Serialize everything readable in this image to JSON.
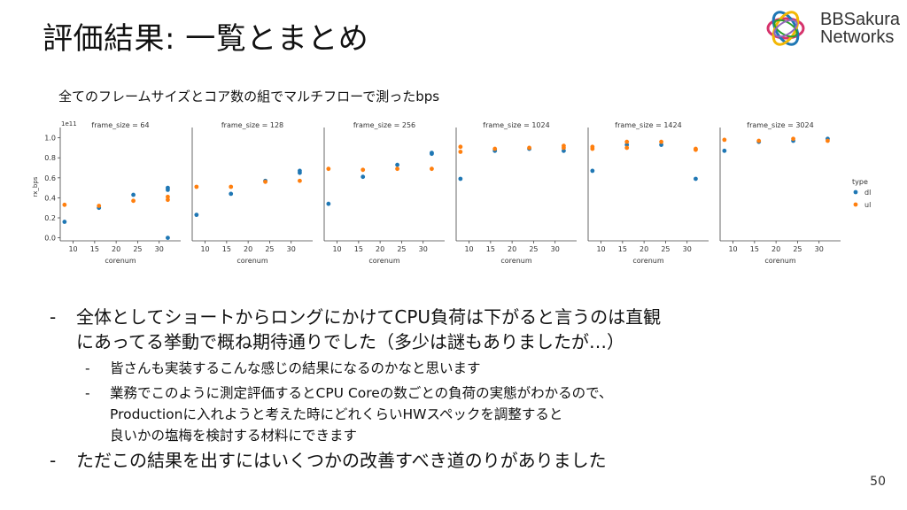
{
  "slide": {
    "title": "評価結果: 一覧とまとめ",
    "logo": {
      "line1": "BBSakura",
      "line2": "Networks"
    },
    "subtitle": "全てのフレームサイズとコア数の組でマルチフローで測ったbps",
    "page_number": "50"
  },
  "bullets": {
    "b1": {
      "line1": "全体としてショートからロングにかけてCPU負荷は下がると言うのは直観",
      "line2": "にあってる挙動で概ね期待通りでした（多少は謎もありましたが…）"
    },
    "b1_1": "皆さんも実装するこんな感じの結果になるのかなと思います",
    "b1_2": {
      "line1": "業務でこのように測定評価するとCPU Coreの数ごとの負荷の実態がわかるので、",
      "line2": "Productionに入れようと考えた時にどれくらいHWスペックを調整すると",
      "line3": "良いかの塩梅を検討する材料にできます"
    },
    "b2": "ただこの結果を出すにはいくつかの改善すべき道のりがありました",
    "dash": "-"
  },
  "chart_data": {
    "type": "scatter",
    "xlabel": "corenum",
    "ylabel": "rx_bps",
    "y_offset_text": "1e11",
    "xlim": [
      7,
      35
    ],
    "ylim": [
      -0.03,
      1.05
    ],
    "xticks": [
      10,
      15,
      20,
      25,
      30
    ],
    "yticks": [
      "0.0",
      "0.2",
      "0.4",
      "0.6",
      "0.8",
      "1.0"
    ],
    "grid": false,
    "legend": {
      "title": "type",
      "placement": "right",
      "entries": [
        {
          "name": "dl",
          "color": "#1f77b4"
        },
        {
          "name": "ul",
          "color": "#ff7f0e"
        }
      ]
    },
    "panels": [
      {
        "title": "frame_size = 64",
        "series": [
          {
            "name": "dl",
            "points": [
              [
                8,
                0.16
              ],
              [
                16,
                0.3
              ],
              [
                24,
                0.43
              ],
              [
                32,
                0.5
              ],
              [
                32,
                0.48
              ],
              [
                32,
                0.0
              ]
            ]
          },
          {
            "name": "ul",
            "points": [
              [
                8,
                0.33
              ],
              [
                16,
                0.32
              ],
              [
                24,
                0.37
              ],
              [
                32,
                0.41
              ],
              [
                32,
                0.38
              ]
            ]
          }
        ]
      },
      {
        "title": "frame_size = 128",
        "series": [
          {
            "name": "dl",
            "points": [
              [
                8,
                0.23
              ],
              [
                16,
                0.44
              ],
              [
                24,
                0.57
              ],
              [
                32,
                0.67
              ],
              [
                32,
                0.65
              ]
            ]
          },
          {
            "name": "ul",
            "points": [
              [
                8,
                0.51
              ],
              [
                16,
                0.51
              ],
              [
                24,
                0.56
              ],
              [
                32,
                0.57
              ]
            ]
          }
        ]
      },
      {
        "title": "frame_size = 256",
        "series": [
          {
            "name": "dl",
            "points": [
              [
                8,
                0.34
              ],
              [
                16,
                0.61
              ],
              [
                24,
                0.73
              ],
              [
                32,
                0.85
              ],
              [
                32,
                0.84
              ]
            ]
          },
          {
            "name": "ul",
            "points": [
              [
                8,
                0.69
              ],
              [
                16,
                0.68
              ],
              [
                24,
                0.69
              ],
              [
                32,
                0.69
              ]
            ]
          }
        ]
      },
      {
        "title": "frame_size = 1024",
        "series": [
          {
            "name": "dl",
            "points": [
              [
                8,
                0.59
              ],
              [
                16,
                0.87
              ],
              [
                24,
                0.89
              ],
              [
                32,
                0.87
              ]
            ]
          },
          {
            "name": "ul",
            "points": [
              [
                8,
                0.91
              ],
              [
                8,
                0.86
              ],
              [
                16,
                0.89
              ],
              [
                24,
                0.9
              ],
              [
                32,
                0.92
              ],
              [
                32,
                0.9
              ]
            ]
          }
        ]
      },
      {
        "title": "frame_size = 1424",
        "series": [
          {
            "name": "dl",
            "points": [
              [
                8,
                0.67
              ],
              [
                16,
                0.93
              ],
              [
                24,
                0.93
              ],
              [
                32,
                0.59
              ]
            ]
          },
          {
            "name": "ul",
            "points": [
              [
                8,
                0.91
              ],
              [
                8,
                0.89
              ],
              [
                16,
                0.96
              ],
              [
                16,
                0.9
              ],
              [
                24,
                0.96
              ],
              [
                32,
                0.89
              ],
              [
                32,
                0.88
              ]
            ]
          }
        ]
      },
      {
        "title": "frame_size = 3024",
        "series": [
          {
            "name": "dl",
            "points": [
              [
                8,
                0.87
              ],
              [
                16,
                0.96
              ],
              [
                24,
                0.97
              ],
              [
                32,
                0.99
              ]
            ]
          },
          {
            "name": "ul",
            "points": [
              [
                8,
                0.98
              ],
              [
                16,
                0.97
              ],
              [
                24,
                0.99
              ],
              [
                32,
                0.97
              ]
            ]
          }
        ]
      }
    ]
  }
}
